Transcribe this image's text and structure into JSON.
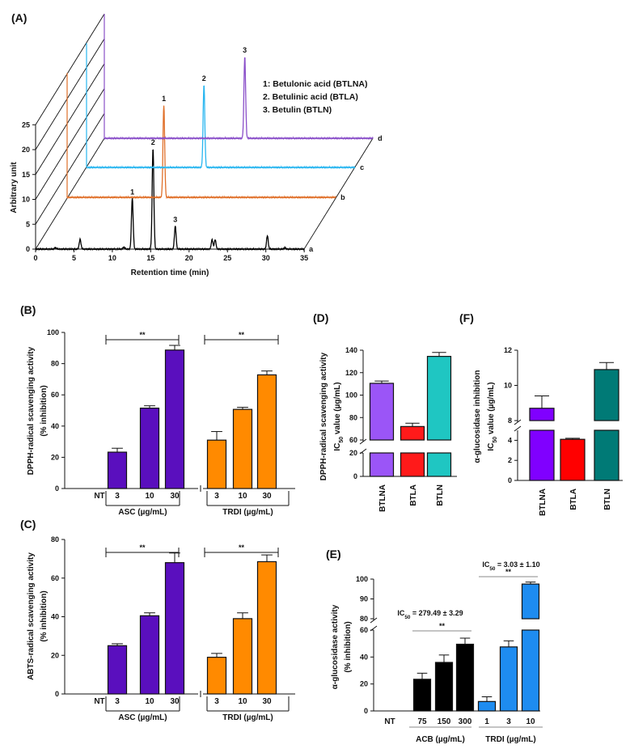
{
  "chart_data": [
    {
      "panel": "(A)",
      "type": "line",
      "xlabel": "Retention time (min)",
      "ylabel": "Arbitrary unit",
      "xlim": [
        0,
        35
      ],
      "ylim": [
        0,
        25
      ],
      "xticks": [
        "0",
        "5",
        "10",
        "15",
        "20",
        "25",
        "30",
        "35"
      ],
      "yticks": [
        "0",
        "5",
        "10",
        "15",
        "20",
        "25"
      ],
      "legend": [
        "1: Betulonic acid (BTLNA)",
        "2. Betulinic acid (BTLA)",
        "3. Betulin (BTLN)"
      ],
      "series": [
        {
          "name": "a",
          "color": "#000000",
          "peaks": [
            {
              "x": 2.6,
              "y": 0.3
            },
            {
              "x": 5.8,
              "y": 2.0
            },
            {
              "x": 11.5,
              "y": 0.4
            },
            {
              "x": 12.6,
              "y": 10.2,
              "label": "1"
            },
            {
              "x": 15.3,
              "y": 20.2,
              "label": "2"
            },
            {
              "x": 18.2,
              "y": 4.6,
              "label": "3"
            },
            {
              "x": 23.0,
              "y": 1.9
            },
            {
              "x": 23.4,
              "y": 1.9
            },
            {
              "x": 30.2,
              "y": 2.7
            },
            {
              "x": 32.5,
              "y": 0.3
            }
          ]
        },
        {
          "name": "b",
          "color": "#e0702a",
          "peaks": [
            {
              "x": 12.6,
              "y": 18.5,
              "label": "1"
            }
          ]
        },
        {
          "name": "c",
          "color": "#29b6f0",
          "peaks": [
            {
              "x": 15.3,
              "y": 16.6,
              "label": "2"
            }
          ]
        },
        {
          "name": "d",
          "color": "#8a4fc9",
          "peaks": [
            {
              "x": 18.3,
              "y": 16.4,
              "label": "3"
            }
          ]
        }
      ]
    },
    {
      "panel": "(B)",
      "type": "bar",
      "ylabel": [
        "DPPH-radical scavenging activity",
        "(% inhibition)"
      ],
      "ylim": [
        0,
        100
      ],
      "yticks": [
        "0",
        "20",
        "40",
        "60",
        "80",
        "100"
      ],
      "nt_label": "NT",
      "groups": [
        {
          "label": "ASC (µg/mL)",
          "color": "#5a0fbe",
          "categories": [
            "3",
            "10",
            "30"
          ],
          "values": [
            23.3,
            51.5,
            88.7
          ],
          "errors": [
            2.5,
            1.5,
            3.0
          ],
          "significance": "**"
        },
        {
          "label": "TRDI (µg/mL)",
          "color": "#ff8a00",
          "categories": [
            "3",
            "10",
            "30"
          ],
          "values": [
            31.0,
            50.7,
            72.8
          ],
          "errors": [
            5.5,
            1.3,
            2.5
          ],
          "significance": "**"
        }
      ]
    },
    {
      "panel": "(C)",
      "type": "bar",
      "ylabel": [
        "ABTS-radical scavenging activity",
        "(% inhibition)"
      ],
      "ylim": [
        0,
        80
      ],
      "yticks": [
        "0",
        "20",
        "40",
        "60",
        "80"
      ],
      "nt_label": "NT",
      "groups": [
        {
          "label": "ASC (µg/mL)",
          "color": "#5a0fbe",
          "categories": [
            "3",
            "10",
            "30"
          ],
          "values": [
            25.0,
            40.5,
            68.0
          ],
          "errors": [
            1.0,
            1.5,
            5.0
          ],
          "significance": "**"
        },
        {
          "label": "TRDI (µg/mL)",
          "color": "#ff8a00",
          "categories": [
            "3",
            "10",
            "30"
          ],
          "values": [
            19.0,
            39.0,
            68.5
          ],
          "errors": [
            2.0,
            3.0,
            3.5
          ],
          "significance": "**"
        }
      ]
    },
    {
      "panel": "(D)",
      "type": "bar",
      "ylabel": [
        "DPPH-radical scavenging activity",
        {
          "pre": "IC",
          "sub": "50",
          "post": " value (µg/mL)"
        }
      ],
      "ylim": [
        0,
        140
      ],
      "axis_break": [
        20,
        60
      ],
      "yticks": [
        "0",
        "20",
        "60",
        "80",
        "100",
        "120",
        "140"
      ],
      "categories": [
        "BTLNA",
        "BTLA",
        "BTLN"
      ],
      "values": [
        110.5,
        72.0,
        134.5
      ],
      "errors": [
        2.0,
        3.0,
        3.5
      ],
      "colors": [
        "#9b55f7",
        "#ff1a1a",
        "#1fc6c2"
      ]
    },
    {
      "panel": "(F)",
      "type": "bar",
      "ylabel": [
        "α-glucosidase inhibition",
        {
          "pre": "IC",
          "sub": "50",
          "post": " value (µg/mL)"
        }
      ],
      "ylim": [
        0,
        12
      ],
      "axis_break": [
        5,
        8
      ],
      "yticks": [
        "0",
        "2",
        "4",
        "8",
        "10",
        "12"
      ],
      "categories": [
        "BTLNA",
        "BTLA",
        "BTLN"
      ],
      "values": [
        8.7,
        4.1,
        10.9
      ],
      "errors": [
        0.7,
        0.1,
        0.4
      ],
      "colors": [
        "#8000ff",
        "#ff0000",
        "#007a76"
      ]
    },
    {
      "panel": "(E)",
      "type": "bar",
      "ylabel": [
        "α-glucosidase activity",
        "(% inhibition)"
      ],
      "ylim": [
        0,
        100
      ],
      "axis_break": [
        60,
        80
      ],
      "yticks": [
        "0",
        "20",
        "40",
        "60",
        "80",
        "90",
        "100"
      ],
      "nt_label": "NT",
      "groups": [
        {
          "label": "ACB (µg/mL)",
          "color": "#000000",
          "categories": [
            "75",
            "150",
            "300"
          ],
          "values": [
            23.5,
            36.0,
            49.5
          ],
          "errors": [
            4.5,
            5.5,
            4.5
          ],
          "significance": "**",
          "annotation": {
            "pre": "IC",
            "sub": "50",
            "post": " = 279.49 ± 3.29"
          }
        },
        {
          "label": "TRDI (µg/mL)",
          "color": "#1e8cf0",
          "categories": [
            "1",
            "3",
            "10"
          ],
          "values": [
            7.0,
            47.5,
            97.5
          ],
          "errors": [
            3.5,
            4.5,
            1.0
          ],
          "significance": "**",
          "annotation": {
            "pre": "IC",
            "sub": "50",
            "post": " = 3.03 ± 1.10"
          }
        }
      ]
    }
  ]
}
